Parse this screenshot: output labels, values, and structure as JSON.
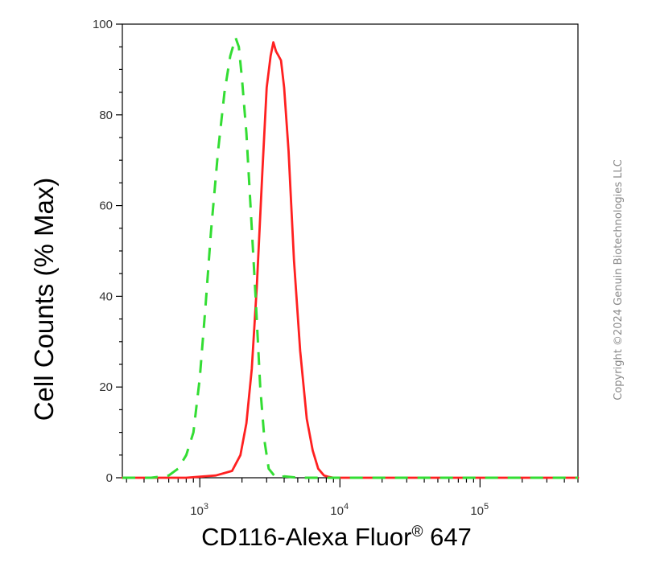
{
  "chart_data": {
    "type": "line",
    "xlabel": "CD116-Alexa Fluor",
    "xlabel_sup": "®",
    "xlabel_suffix": " 647",
    "ylabel": "Cell Counts (% Max)",
    "x_scale": "log",
    "xlim": [
      280,
      500000
    ],
    "ylim": [
      0,
      100
    ],
    "y_ticks": [
      0,
      20,
      40,
      60,
      80,
      100
    ],
    "x_decades": [
      {
        "base": "10",
        "exp": "3"
      },
      {
        "base": "10",
        "exp": "4"
      },
      {
        "base": "10",
        "exp": "5"
      }
    ],
    "grid": false,
    "series": [
      {
        "color": "#ff2020",
        "dash": "solid",
        "x": [
          280,
          800,
          1300,
          1700,
          1950,
          2150,
          2350,
          2550,
          2800,
          3000,
          3200,
          3350,
          3500,
          3650,
          3800,
          4000,
          4300,
          4700,
          5200,
          5800,
          6400,
          7000,
          7700,
          8300,
          9000,
          10000,
          20000,
          100000,
          500000
        ],
        "y": [
          0,
          0,
          0.5,
          1.5,
          5,
          12,
          24,
          42,
          68,
          86,
          93,
          96,
          94,
          93,
          92,
          86,
          72,
          48,
          28,
          13,
          6,
          2,
          0.5,
          0.2,
          0,
          0,
          0,
          0,
          0
        ]
      },
      {
        "color": "#33dd33",
        "dash": "dashed",
        "x": [
          280,
          450,
          600,
          700,
          800,
          900,
          1000,
          1100,
          1200,
          1350,
          1500,
          1650,
          1800,
          1900,
          2000,
          2150,
          2300,
          2500,
          2700,
          2900,
          3100,
          3500,
          4000,
          5000,
          10000,
          100000,
          500000
        ],
        "y": [
          0,
          0,
          0.5,
          2,
          5,
          10,
          22,
          38,
          54,
          72,
          85,
          93,
          97,
          95,
          88,
          76,
          60,
          40,
          20,
          8,
          2,
          0,
          0.3,
          0,
          0,
          0,
          0
        ]
      }
    ]
  },
  "watermark": "Copyright ©2024 Genuin Biotechnologies LLC"
}
